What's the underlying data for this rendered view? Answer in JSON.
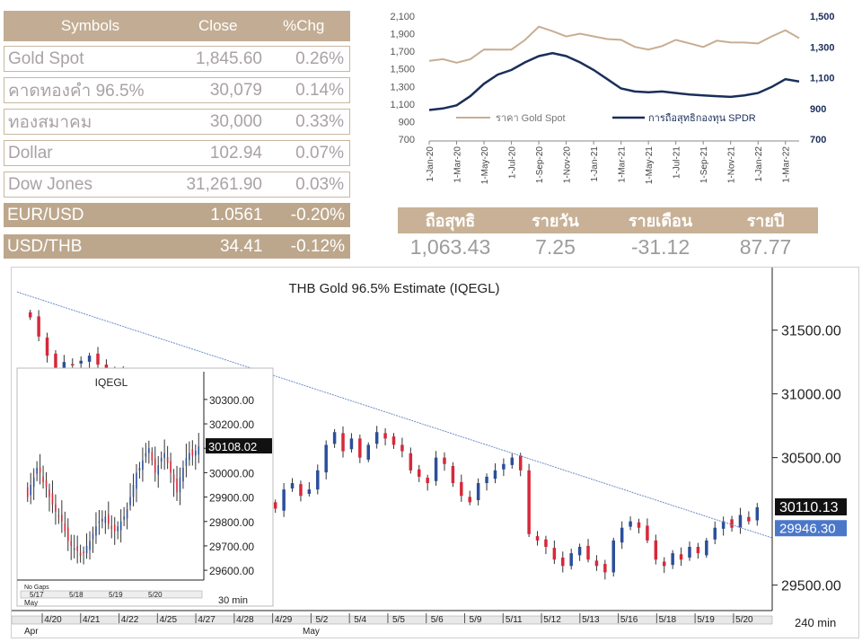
{
  "market_table": {
    "headers": [
      "Symbols",
      "Close",
      "%Chg"
    ],
    "rows": [
      {
        "symbol": "Gold Spot",
        "close": "1,845.60",
        "chg": "0.26%",
        "style": "plain"
      },
      {
        "symbol": "คาดทองคำ 96.5%",
        "close": "30,079",
        "chg": "0.14%",
        "style": "plain"
      },
      {
        "symbol": "ทองสมาคม",
        "close": "30,000",
        "chg": "0.33%",
        "style": "plain"
      },
      {
        "symbol": "Dollar",
        "close": "102.94",
        "chg": "0.07%",
        "style": "plain"
      },
      {
        "symbol": "Dow Jones",
        "close": "31,261.90",
        "chg": "0.03%",
        "style": "plain"
      },
      {
        "symbol": "EUR/USD",
        "close": "1.0561",
        "chg": "-0.20%",
        "style": "brown"
      },
      {
        "symbol": "USD/THB",
        "close": "34.41",
        "chg": "-0.12%",
        "style": "brown"
      }
    ]
  },
  "spdr_summary": {
    "headers": [
      "ถือสุทธิ",
      "รายวัน",
      "รายเดือน",
      "รายปี"
    ],
    "values": [
      "1,063.43",
      "7.25",
      "-31.12",
      "87.77"
    ]
  },
  "colors": {
    "gold_line": "#c8ad92",
    "spdr_line": "#1b2e5a",
    "table_header": "#c2ad94",
    "bull_candle": "#2b4f9a",
    "bear_candle": "#d6293a",
    "trendline": "#6f8fc4",
    "price_box_black": "#111111",
    "price_box_blue": "#4b77c9"
  },
  "chart_data": [
    {
      "type": "line",
      "legend": [
        "ราคา Gold Spot",
        "การถือสุทธิกองทุน SPDR"
      ],
      "x_ticks": [
        "1-Jan-20",
        "1-Mar-20",
        "1-May-20",
        "1-Jul-20",
        "1-Sep-20",
        "1-Nov-20",
        "1-Jan-21",
        "1-Mar-21",
        "1-May-21",
        "1-Jul-21",
        "1-Sep-21",
        "1-Nov-21",
        "1-Jan-22",
        "1-Mar-22"
      ],
      "y_left_ticks": [
        "2,100",
        "1,900",
        "1,700",
        "1,500",
        "1,300",
        "1,100",
        "900",
        "700"
      ],
      "y_right_ticks": [
        "1,500",
        "1,300",
        "1,100",
        "900",
        "700"
      ],
      "ylim_left": [
        700,
        2100
      ],
      "ylim_right": [
        700,
        1500
      ],
      "series": [
        {
          "name": "ราคา Gold Spot",
          "axis": "left",
          "x": [
            0,
            1,
            2,
            3,
            4,
            5,
            6,
            7,
            8,
            9,
            10,
            11,
            12,
            13,
            14,
            15,
            16,
            17,
            18,
            19,
            20,
            21,
            22,
            23,
            24,
            25,
            26,
            27
          ],
          "values": [
            1560,
            1600,
            1580,
            1640,
            1700,
            1720,
            1740,
            1800,
            1970,
            1940,
            1900,
            1880,
            1870,
            1860,
            1800,
            1740,
            1730,
            1790,
            1810,
            1790,
            1770,
            1790,
            1790,
            1810,
            1820,
            1850,
            1940,
            1870
          ]
        },
        {
          "name": "การถือสุทธิกองทุน SPDR",
          "axis": "right",
          "x": [
            0,
            1,
            2,
            3,
            4,
            5,
            6,
            7,
            8,
            9,
            10,
            11,
            12,
            13,
            14,
            15,
            16,
            17,
            18,
            19,
            20,
            21,
            22,
            23,
            24,
            25,
            26,
            27
          ],
          "values": [
            890,
            900,
            920,
            980,
            1060,
            1120,
            1150,
            1200,
            1240,
            1260,
            1240,
            1200,
            1150,
            1090,
            1030,
            1010,
            1005,
            1010,
            1000,
            990,
            985,
            980,
            975,
            985,
            1000,
            1040,
            1090,
            1075
          ]
        }
      ]
    },
    {
      "type": "candlestick",
      "title": "THB  Gold  96.5%  Estimate  (IQEGL)",
      "timeframe": "240  min",
      "x_labels": [
        "4/20",
        "4/21",
        "4/22",
        "4/25",
        "4/27",
        "4/28",
        "4/29",
        "5/2",
        "5/4",
        "5/5",
        "5/6",
        "5/9",
        "5/11",
        "5/12",
        "5/13",
        "5/16",
        "5/18",
        "5/19",
        "5/20"
      ],
      "month_labels": [
        "Apr",
        "May"
      ],
      "y_ticks": [
        "31500.00",
        "31000.00",
        "30500.00",
        "29500.00"
      ],
      "ylim": [
        29300,
        31850
      ],
      "last_price": "30110.13",
      "secondary_price": "29946.30",
      "trendline": {
        "start": 31800,
        "end": 29870
      },
      "closes": [
        31600,
        31450,
        31300,
        31200,
        31250,
        31230,
        31260,
        31300,
        31230,
        31200,
        31150,
        31050,
        30980,
        30900,
        30850,
        30800,
        30700,
        30650,
        31050,
        30950,
        30900,
        30850,
        30750,
        30650,
        30350,
        30200,
        30300,
        30250,
        30150,
        30100,
        30250,
        30300,
        30200,
        30250,
        30400,
        30600,
        30700,
        30550,
        30650,
        30500,
        30600,
        30700,
        30650,
        30600,
        30550,
        30400,
        30350,
        30300,
        30500,
        30450,
        30300,
        30200,
        30150,
        30300,
        30350,
        30400,
        30450,
        30500,
        30400,
        29900,
        29850,
        29800,
        29700,
        29650,
        29750,
        29800,
        29700,
        29650,
        29600,
        29850,
        29950,
        30000,
        29950,
        29850,
        29700,
        29650,
        29750,
        29700,
        29800,
        29750,
        29850,
        29950,
        30000,
        29950,
        30050,
        30000,
        30110
      ]
    },
    {
      "type": "candlestick",
      "title": "IQEGL",
      "timeframe": "30  min",
      "x_labels": [
        "5/17",
        "5/18",
        "5/19",
        "5/20"
      ],
      "month_labels": [
        "May"
      ],
      "gap_label": "No Gaps",
      "y_ticks": [
        "30300.00",
        "30200.00",
        "30100.00",
        "30000.00",
        "29900.00",
        "29800.00",
        "29700.00",
        "29600.00"
      ],
      "ylim": [
        29560,
        30340
      ],
      "last_price": "30108.02",
      "closes": [
        29900,
        29950,
        29980,
        30020,
        30000,
        29960,
        29940,
        29900,
        29870,
        29840,
        29820,
        29800,
        29760,
        29720,
        29700,
        29690,
        29680,
        29660,
        29670,
        29700,
        29720,
        29750,
        29780,
        29800,
        29810,
        29820,
        29790,
        29770,
        29760,
        29780,
        29800,
        29820,
        29850,
        29900,
        29950,
        30000,
        30020,
        30050,
        30080,
        30100,
        30050,
        30000,
        30030,
        30060,
        30080,
        30040,
        30000,
        29960,
        29920,
        29980,
        30020,
        30060,
        30080,
        30070,
        30090,
        30108
      ]
    }
  ]
}
